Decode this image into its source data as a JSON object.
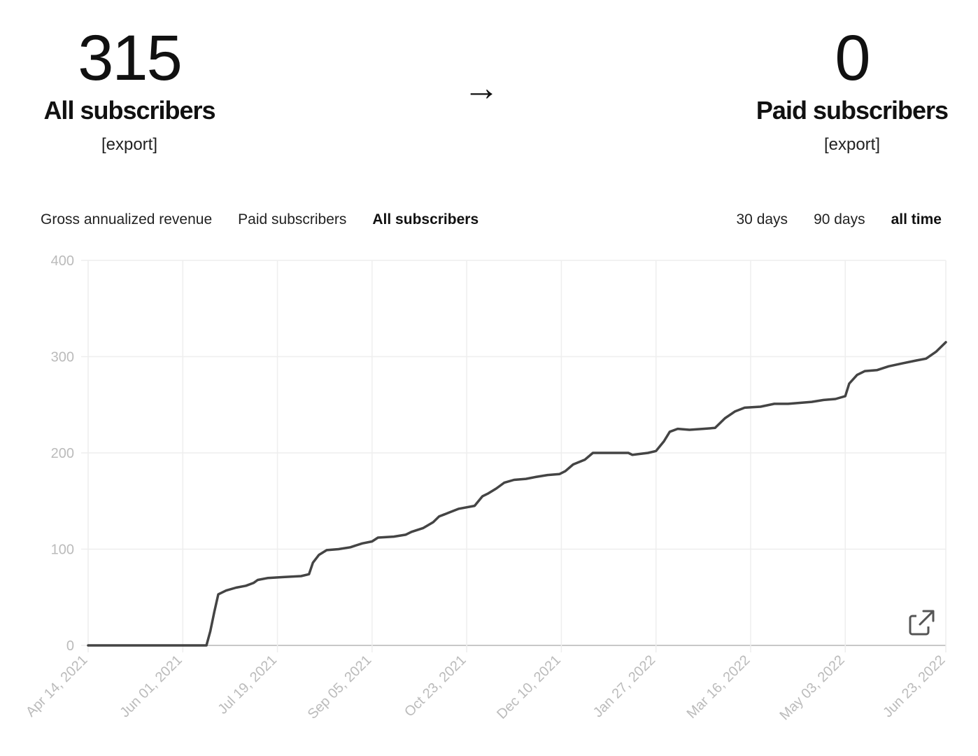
{
  "summary": {
    "all": {
      "count": "315",
      "label": "All subscribers",
      "export": "[export]"
    },
    "arrow": "→",
    "paid": {
      "count": "0",
      "label": "Paid subscribers",
      "export": "[export]"
    }
  },
  "metric_tabs": [
    {
      "label": "Gross annualized revenue",
      "active": false
    },
    {
      "label": "Paid subscribers",
      "active": false
    },
    {
      "label": "All subscribers",
      "active": true
    }
  ],
  "range_tabs": [
    {
      "label": "30 days",
      "active": false
    },
    {
      "label": "90 days",
      "active": false
    },
    {
      "label": "all time",
      "active": true
    }
  ],
  "icons": {
    "open_external": "external-link-icon"
  },
  "colors": {
    "line": "#444444",
    "grid": "#eeeeee",
    "axis_text": "#bbbbbb",
    "baseline": "#c8c8c8"
  },
  "chart_data": {
    "type": "line",
    "title": "",
    "xlabel": "",
    "ylabel": "",
    "ylim": [
      0,
      400
    ],
    "xlim": [
      "2021-04-14",
      "2022-06-23"
    ],
    "yticks": [
      "0",
      "100",
      "200",
      "300",
      "400"
    ],
    "xticks": [
      {
        "label": "Apr 14, 2021",
        "date": "2021-04-14"
      },
      {
        "label": "Jun 01, 2021",
        "date": "2021-06-01"
      },
      {
        "label": "Jul 19, 2021",
        "date": "2021-07-19"
      },
      {
        "label": "Sep 05, 2021",
        "date": "2021-09-05"
      },
      {
        "label": "Oct 23, 2021",
        "date": "2021-10-23"
      },
      {
        "label": "Dec 10, 2021",
        "date": "2021-12-10"
      },
      {
        "label": "Jan 27, 2022",
        "date": "2022-01-27"
      },
      {
        "label": "Mar 16, 2022",
        "date": "2022-03-16"
      },
      {
        "label": "May 03, 2022",
        "date": "2022-05-03"
      },
      {
        "label": "Jun 23, 2022",
        "date": "2022-06-23"
      }
    ],
    "grid": true,
    "series": [
      {
        "points": [
          [
            "2021-04-14",
            0
          ],
          [
            "2021-06-13",
            0
          ],
          [
            "2021-06-15",
            15
          ],
          [
            "2021-06-17",
            35
          ],
          [
            "2021-06-19",
            53
          ],
          [
            "2021-06-23",
            57
          ],
          [
            "2021-06-28",
            60
          ],
          [
            "2021-07-03",
            62
          ],
          [
            "2021-07-07",
            65
          ],
          [
            "2021-07-09",
            68
          ],
          [
            "2021-07-14",
            70
          ],
          [
            "2021-07-22",
            71
          ],
          [
            "2021-07-31",
            72
          ],
          [
            "2021-08-04",
            74
          ],
          [
            "2021-08-06",
            86
          ],
          [
            "2021-08-09",
            94
          ],
          [
            "2021-08-13",
            99
          ],
          [
            "2021-08-19",
            100
          ],
          [
            "2021-08-25",
            102
          ],
          [
            "2021-08-31",
            106
          ],
          [
            "2021-09-05",
            108
          ],
          [
            "2021-09-08",
            112
          ],
          [
            "2021-09-16",
            113
          ],
          [
            "2021-09-22",
            115
          ],
          [
            "2021-09-25",
            118
          ],
          [
            "2021-10-01",
            122
          ],
          [
            "2021-10-06",
            128
          ],
          [
            "2021-10-09",
            134
          ],
          [
            "2021-10-14",
            138
          ],
          [
            "2021-10-19",
            142
          ],
          [
            "2021-10-27",
            145
          ],
          [
            "2021-10-31",
            155
          ],
          [
            "2021-11-03",
            158
          ],
          [
            "2021-11-07",
            163
          ],
          [
            "2021-11-11",
            169
          ],
          [
            "2021-11-16",
            172
          ],
          [
            "2021-11-22",
            173
          ],
          [
            "2021-11-27",
            175
          ],
          [
            "2021-12-03",
            177
          ],
          [
            "2021-12-09",
            178
          ],
          [
            "2021-12-12",
            181
          ],
          [
            "2021-12-16",
            188
          ],
          [
            "2021-12-22",
            193
          ],
          [
            "2021-12-26",
            200
          ],
          [
            "2022-01-05",
            200
          ],
          [
            "2022-01-13",
            200
          ],
          [
            "2022-01-15",
            198
          ],
          [
            "2022-01-19",
            199
          ],
          [
            "2022-01-23",
            200
          ],
          [
            "2022-01-27",
            202
          ],
          [
            "2022-01-31",
            212
          ],
          [
            "2022-02-03",
            222
          ],
          [
            "2022-02-07",
            225
          ],
          [
            "2022-02-13",
            224
          ],
          [
            "2022-02-20",
            225
          ],
          [
            "2022-02-26",
            226
          ],
          [
            "2022-03-03",
            236
          ],
          [
            "2022-03-08",
            243
          ],
          [
            "2022-03-13",
            247
          ],
          [
            "2022-03-21",
            248
          ],
          [
            "2022-03-28",
            251
          ],
          [
            "2022-04-04",
            251
          ],
          [
            "2022-04-10",
            252
          ],
          [
            "2022-04-16",
            253
          ],
          [
            "2022-04-22",
            255
          ],
          [
            "2022-04-28",
            256
          ],
          [
            "2022-05-03",
            259
          ],
          [
            "2022-05-05",
            272
          ],
          [
            "2022-05-09",
            281
          ],
          [
            "2022-05-13",
            285
          ],
          [
            "2022-05-19",
            286
          ],
          [
            "2022-05-25",
            290
          ],
          [
            "2022-06-01",
            293
          ],
          [
            "2022-06-08",
            296
          ],
          [
            "2022-06-13",
            298
          ],
          [
            "2022-06-18",
            305
          ],
          [
            "2022-06-23",
            315
          ]
        ]
      }
    ]
  }
}
